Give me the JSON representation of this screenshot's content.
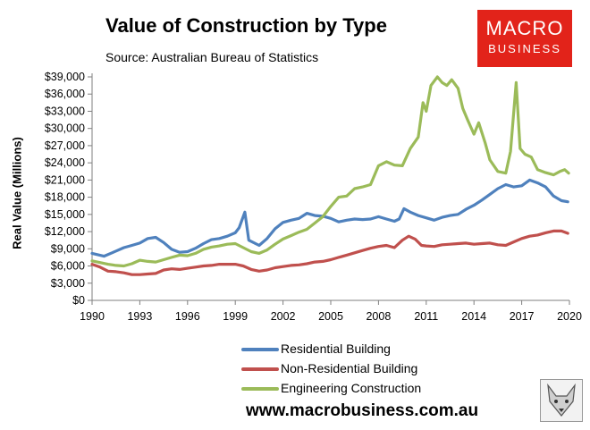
{
  "chart_data": {
    "type": "line",
    "title": "Value of Construction by Type",
    "subtitle": "Source: Australian Bureau of Statistics",
    "ylabel": "Real Value (Millions)",
    "xlabel": "",
    "xlim": [
      1990,
      2020
    ],
    "ylim": [
      0,
      39000
    ],
    "yticks": [
      {
        "value": 0,
        "label": "$0"
      },
      {
        "value": 3000,
        "label": "$3,000"
      },
      {
        "value": 6000,
        "label": "$6,000"
      },
      {
        "value": 9000,
        "label": "$9,000"
      },
      {
        "value": 12000,
        "label": "$12,000"
      },
      {
        "value": 15000,
        "label": "$15,000"
      },
      {
        "value": 18000,
        "label": "$18,000"
      },
      {
        "value": 21000,
        "label": "$21,000"
      },
      {
        "value": 24000,
        "label": "$24,000"
      },
      {
        "value": 27000,
        "label": "$27,000"
      },
      {
        "value": 30000,
        "label": "$30,000"
      },
      {
        "value": 33000,
        "label": "$33,000"
      },
      {
        "value": 36000,
        "label": "$36,000"
      },
      {
        "value": 39000,
        "label": "$39,000"
      }
    ],
    "xticks": [
      "1990",
      "1993",
      "1996",
      "1999",
      "2002",
      "2005",
      "2008",
      "2011",
      "2014",
      "2017",
      "2020"
    ],
    "legend_position": "bottom",
    "series": [
      {
        "name": "Residential Building",
        "color": "#4f81bd",
        "points": [
          [
            1990,
            8200
          ],
          [
            1990.75,
            7700
          ],
          [
            1991.25,
            8300
          ],
          [
            1992,
            9200
          ],
          [
            1992.5,
            9600
          ],
          [
            1993,
            10000
          ],
          [
            1993.5,
            10800
          ],
          [
            1994,
            11000
          ],
          [
            1994.5,
            10100
          ],
          [
            1995,
            8900
          ],
          [
            1995.5,
            8400
          ],
          [
            1996,
            8500
          ],
          [
            1996.5,
            9100
          ],
          [
            1997,
            9900
          ],
          [
            1997.5,
            10600
          ],
          [
            1998,
            10800
          ],
          [
            1998.5,
            11200
          ],
          [
            1999,
            11800
          ],
          [
            1999.25,
            12700
          ],
          [
            1999.6,
            15400
          ],
          [
            1999.85,
            10500
          ],
          [
            2000.5,
            9600
          ],
          [
            2001,
            10800
          ],
          [
            2001.5,
            12500
          ],
          [
            2002,
            13600
          ],
          [
            2002.5,
            14000
          ],
          [
            2003,
            14300
          ],
          [
            2003.5,
            15200
          ],
          [
            2004,
            14800
          ],
          [
            2004.5,
            14700
          ],
          [
            2005,
            14300
          ],
          [
            2005.5,
            13700
          ],
          [
            2006,
            14000
          ],
          [
            2006.5,
            14200
          ],
          [
            2007,
            14100
          ],
          [
            2007.5,
            14200
          ],
          [
            2008,
            14600
          ],
          [
            2008.5,
            14200
          ],
          [
            2009,
            13800
          ],
          [
            2009.3,
            14200
          ],
          [
            2009.6,
            16000
          ],
          [
            2010,
            15400
          ],
          [
            2010.5,
            14800
          ],
          [
            2011,
            14400
          ],
          [
            2011.5,
            14000
          ],
          [
            2012,
            14500
          ],
          [
            2012.5,
            14800
          ],
          [
            2013,
            15000
          ],
          [
            2013.5,
            15900
          ],
          [
            2014,
            16600
          ],
          [
            2014.5,
            17500
          ],
          [
            2015,
            18500
          ],
          [
            2015.5,
            19500
          ],
          [
            2016,
            20200
          ],
          [
            2016.5,
            19800
          ],
          [
            2017,
            20000
          ],
          [
            2017.5,
            21000
          ],
          [
            2018,
            20500
          ],
          [
            2018.5,
            19800
          ],
          [
            2019,
            18200
          ],
          [
            2019.5,
            17400
          ],
          [
            2019.9,
            17200
          ]
        ]
      },
      {
        "name": "Non-Residential Building",
        "color": "#c0504d",
        "points": [
          [
            1990,
            6300
          ],
          [
            1990.5,
            5800
          ],
          [
            1991,
            5100
          ],
          [
            1991.5,
            5000
          ],
          [
            1992,
            4800
          ],
          [
            1992.5,
            4500
          ],
          [
            1993,
            4500
          ],
          [
            1993.5,
            4600
          ],
          [
            1994,
            4700
          ],
          [
            1994.5,
            5300
          ],
          [
            1995,
            5500
          ],
          [
            1995.5,
            5400
          ],
          [
            1996,
            5600
          ],
          [
            1996.5,
            5800
          ],
          [
            1997,
            6000
          ],
          [
            1997.5,
            6100
          ],
          [
            1998,
            6300
          ],
          [
            1998.5,
            6300
          ],
          [
            1999,
            6300
          ],
          [
            1999.5,
            6000
          ],
          [
            2000,
            5400
          ],
          [
            2000.5,
            5100
          ],
          [
            2001,
            5300
          ],
          [
            2001.5,
            5700
          ],
          [
            2002,
            5900
          ],
          [
            2002.5,
            6100
          ],
          [
            2003,
            6200
          ],
          [
            2003.5,
            6400
          ],
          [
            2004,
            6700
          ],
          [
            2004.5,
            6800
          ],
          [
            2005,
            7100
          ],
          [
            2005.5,
            7500
          ],
          [
            2006,
            7900
          ],
          [
            2006.5,
            8300
          ],
          [
            2007,
            8700
          ],
          [
            2007.5,
            9100
          ],
          [
            2008,
            9400
          ],
          [
            2008.5,
            9600
          ],
          [
            2009,
            9200
          ],
          [
            2009.5,
            10500
          ],
          [
            2009.9,
            11200
          ],
          [
            2010.3,
            10700
          ],
          [
            2010.7,
            9600
          ],
          [
            2011,
            9500
          ],
          [
            2011.5,
            9400
          ],
          [
            2012,
            9700
          ],
          [
            2012.5,
            9800
          ],
          [
            2013,
            9900
          ],
          [
            2013.5,
            10000
          ],
          [
            2014,
            9800
          ],
          [
            2014.5,
            9900
          ],
          [
            2015,
            10000
          ],
          [
            2015.5,
            9700
          ],
          [
            2016,
            9600
          ],
          [
            2016.5,
            10200
          ],
          [
            2017,
            10800
          ],
          [
            2017.5,
            11200
          ],
          [
            2018,
            11400
          ],
          [
            2018.5,
            11800
          ],
          [
            2019,
            12100
          ],
          [
            2019.5,
            12100
          ],
          [
            2019.9,
            11700
          ]
        ]
      },
      {
        "name": "Engineering Construction",
        "color": "#9bbb59",
        "points": [
          [
            1990,
            6900
          ],
          [
            1990.5,
            6600
          ],
          [
            1991,
            6300
          ],
          [
            1991.5,
            6100
          ],
          [
            1992,
            6000
          ],
          [
            1992.5,
            6400
          ],
          [
            1993,
            7000
          ],
          [
            1993.5,
            6800
          ],
          [
            1994,
            6700
          ],
          [
            1994.5,
            7100
          ],
          [
            1995,
            7500
          ],
          [
            1995.5,
            7900
          ],
          [
            1996,
            7800
          ],
          [
            1996.5,
            8200
          ],
          [
            1997,
            8900
          ],
          [
            1997.5,
            9300
          ],
          [
            1998,
            9500
          ],
          [
            1998.5,
            9800
          ],
          [
            1999,
            9900
          ],
          [
            1999.5,
            9200
          ],
          [
            2000,
            8500
          ],
          [
            2000.5,
            8200
          ],
          [
            2001,
            8800
          ],
          [
            2001.5,
            9800
          ],
          [
            2002,
            10700
          ],
          [
            2002.5,
            11300
          ],
          [
            2003,
            11900
          ],
          [
            2003.5,
            12400
          ],
          [
            2004,
            13500
          ],
          [
            2004.5,
            14600
          ],
          [
            2005,
            16400
          ],
          [
            2005.5,
            18000
          ],
          [
            2006,
            18200
          ],
          [
            2006.5,
            19500
          ],
          [
            2007,
            19800
          ],
          [
            2007.5,
            20200
          ],
          [
            2008,
            23500
          ],
          [
            2008.5,
            24200
          ],
          [
            2009,
            23600
          ],
          [
            2009.5,
            23500
          ],
          [
            2010,
            26500
          ],
          [
            2010.5,
            28500
          ],
          [
            2010.8,
            34500
          ],
          [
            2011,
            33000
          ],
          [
            2011.3,
            37500
          ],
          [
            2011.7,
            39000
          ],
          [
            2012,
            38000
          ],
          [
            2012.3,
            37500
          ],
          [
            2012.6,
            38500
          ],
          [
            2013,
            37000
          ],
          [
            2013.3,
            33500
          ],
          [
            2013.6,
            31500
          ],
          [
            2014,
            29000
          ],
          [
            2014.3,
            31000
          ],
          [
            2014.7,
            27500
          ],
          [
            2015,
            24500
          ],
          [
            2015.5,
            22500
          ],
          [
            2016,
            22200
          ],
          [
            2016.3,
            26000
          ],
          [
            2016.65,
            38000
          ],
          [
            2016.9,
            26500
          ],
          [
            2017.2,
            25500
          ],
          [
            2017.6,
            25000
          ],
          [
            2018,
            22800
          ],
          [
            2018.5,
            22300
          ],
          [
            2019,
            21900
          ],
          [
            2019.4,
            22500
          ],
          [
            2019.7,
            22800
          ],
          [
            2019.95,
            22200
          ]
        ]
      }
    ]
  },
  "logo": {
    "line1": "MACRO",
    "line2": "BUSINESS",
    "color": "#e2231a"
  },
  "footer": {
    "url": "www.macrobusiness.com.au",
    "fox_icon": "fox-icon"
  }
}
